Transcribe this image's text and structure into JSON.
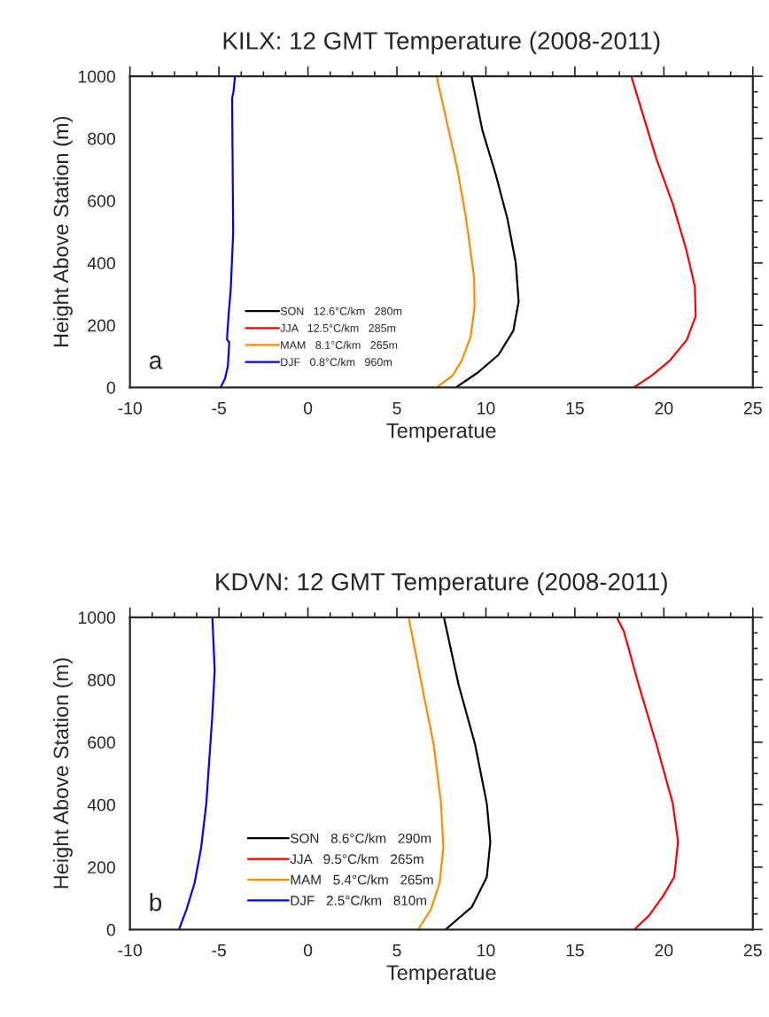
{
  "chart_data": [
    {
      "type": "line",
      "title": "KILX: 12 GMT Temperature (2008-2011)",
      "xlabel": "Temperatue",
      "ylabel": "Height Above Station (m)",
      "xlim": [
        -10,
        25
      ],
      "xticks": [
        -10,
        -5,
        0,
        5,
        10,
        15,
        20,
        25
      ],
      "ylim": [
        0,
        1000
      ],
      "yticks": [
        0,
        200,
        400,
        600,
        800,
        1000
      ],
      "grid": false,
      "legend": "bottom left",
      "line_style": "solid",
      "marker": "none",
      "annotations": [
        "a"
      ],
      "series": [
        {
          "name": "SON   12.6°C/km   280m",
          "color": "#000000",
          "x": [
            8.31,
            9.55,
            10.71,
            11.54,
            11.84,
            11.68,
            11.21,
            10.55,
            9.8,
            9.19
          ],
          "values": [
            0,
            48,
            105,
            182,
            276,
            400,
            542,
            685,
            827,
            1000
          ]
        },
        {
          "name": "JJA   12.5°C/km   285m",
          "color": "#ff0000",
          "x": [
            18.31,
            19.34,
            20.33,
            21.29,
            21.79,
            21.74,
            21.24,
            20.5,
            19.58,
            18.17
          ],
          "values": [
            0,
            39,
            86,
            153,
            229,
            325,
            447,
            590,
            735,
            1000
          ]
        },
        {
          "name": "MAM   8.1°C/km   265m",
          "color": "#ff8c00",
          "x": [
            7.23,
            8.14,
            8.64,
            9.14,
            9.36,
            9.34,
            8.89,
            8.39,
            7.23
          ],
          "values": [
            0,
            39,
            86,
            162,
            257,
            353,
            542,
            704,
            1000
          ]
        },
        {
          "name": "DJF   0.8°C/km   960m",
          "color": "#0000ff",
          "x": [
            -4.91,
            -4.66,
            -4.5,
            -4.42,
            -4.55,
            -4.45,
            -4.34,
            -4.2,
            -4.26,
            -4.18,
            -4.1
          ],
          "values": [
            0,
            28,
            68,
            145,
            154,
            239,
            313,
            496,
            930,
            951,
            1000
          ]
        }
      ]
    },
    {
      "type": "line",
      "title": "KDVN: 12 GMT Temperature (2008-2011)",
      "xlabel": "Temperatue",
      "ylabel": "Height Above Station (m)",
      "xlim": [
        -10,
        25
      ],
      "xticks": [
        -10,
        -5,
        0,
        5,
        10,
        15,
        20,
        25
      ],
      "ylim": [
        0,
        1000
      ],
      "yticks": [
        0,
        200,
        400,
        600,
        800,
        1000
      ],
      "grid": false,
      "legend": "bottom left",
      "line_style": "solid",
      "marker": "none",
      "annotations": [
        "b"
      ],
      "series": [
        {
          "name": "SON   8.6°C/km   290m",
          "color": "#000000",
          "x": [
            7.73,
            9.22,
            10.05,
            10.25,
            10.05,
            9.39,
            8.47,
            7.64
          ],
          "values": [
            0,
            73,
            168,
            281,
            404,
            594,
            783,
            1000
          ]
        },
        {
          "name": "JJA   9.5°C/km   265m",
          "color": "#ff0000",
          "x": [
            18.34,
            19.17,
            20.0,
            20.58,
            20.8,
            20.5,
            19.58,
            18.59,
            17.76,
            17.35
          ],
          "values": [
            0,
            45,
            111,
            168,
            281,
            404,
            594,
            783,
            954,
            1000
          ]
        },
        {
          "name": "MAM   5.4°C/km   265m",
          "color": "#ff8c00",
          "x": [
            6.19,
            6.9,
            7.4,
            7.61,
            7.48,
            7.06,
            6.4,
            5.66
          ],
          "values": [
            0,
            63,
            149,
            262,
            404,
            594,
            783,
            1000
          ]
        },
        {
          "name": "DJF   2.5°C/km   810m",
          "color": "#0000ff",
          "x": [
            -7.25,
            -6.83,
            -6.37,
            -6.0,
            -5.71,
            -5.54,
            -5.37,
            -5.24,
            -5.37
          ],
          "values": [
            0,
            63,
            149,
            262,
            404,
            546,
            688,
            830,
            1000
          ]
        }
      ]
    }
  ]
}
